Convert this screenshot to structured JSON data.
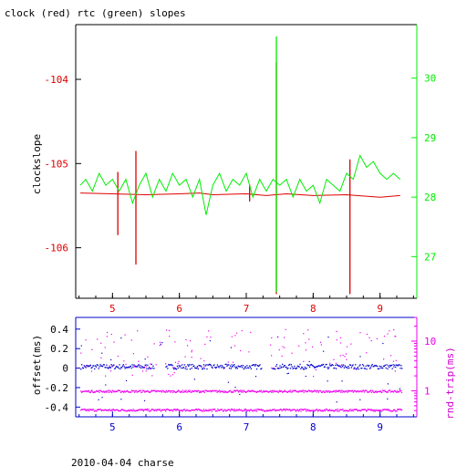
{
  "title": "clock (red) rtc (green) slopes",
  "footer": "2010-04-04 charse",
  "colors": {
    "clock": "#dd0000",
    "rtc": "#00ee00",
    "offset": "#0000cc",
    "rndtrip": "#ee00ee",
    "axis": "#000000"
  },
  "chart_data": [
    {
      "type": "line",
      "title": "clock (red) rtc (green) slopes",
      "ylabel": "clockslope",
      "y2label": "",
      "xlim": [
        4.45,
        9.55
      ],
      "x_ticks": [
        5,
        6,
        7,
        8,
        9
      ],
      "ylim": [
        -106.6,
        -103.35
      ],
      "y_ticks": [
        -106,
        -105,
        -104
      ],
      "y2lim": [
        26.3,
        30.9
      ],
      "y2_ticks": [
        27,
        28,
        29,
        30
      ],
      "series": [
        {
          "axis": "left",
          "color_key": "clock",
          "baseline": [
            [
              4.52,
              -105.35
            ],
            [
              5.0,
              -105.36
            ],
            [
              5.5,
              -105.37
            ],
            [
              6.0,
              -105.36
            ],
            [
              6.3,
              -105.35
            ],
            [
              6.5,
              -105.37
            ],
            [
              7.0,
              -105.36
            ],
            [
              7.3,
              -105.38
            ],
            [
              7.6,
              -105.36
            ],
            [
              8.0,
              -105.38
            ],
            [
              8.5,
              -105.37
            ],
            [
              9.0,
              -105.4
            ],
            [
              9.3,
              -105.38
            ]
          ],
          "spikes": [
            [
              5.08,
              -105.1,
              -105.85
            ],
            [
              5.35,
              -104.85,
              -106.2
            ],
            [
              7.05,
              -105.25,
              -105.45
            ],
            [
              7.45,
              -103.8,
              -106.55
            ],
            [
              8.55,
              -104.95,
              -106.55
            ]
          ]
        },
        {
          "axis": "right",
          "color_key": "rtc",
          "baseline": [
            [
              4.52,
              28.2
            ],
            [
              4.6,
              28.3
            ],
            [
              4.7,
              28.1
            ],
            [
              4.8,
              28.4
            ],
            [
              4.9,
              28.2
            ],
            [
              5.0,
              28.3
            ],
            [
              5.1,
              28.1
            ],
            [
              5.2,
              28.3
            ],
            [
              5.3,
              27.9
            ],
            [
              5.4,
              28.2
            ],
            [
              5.5,
              28.4
            ],
            [
              5.6,
              28.0
            ],
            [
              5.7,
              28.3
            ],
            [
              5.8,
              28.1
            ],
            [
              5.9,
              28.4
            ],
            [
              6.0,
              28.2
            ],
            [
              6.1,
              28.3
            ],
            [
              6.2,
              28.0
            ],
            [
              6.3,
              28.3
            ],
            [
              6.4,
              27.7
            ],
            [
              6.5,
              28.2
            ],
            [
              6.6,
              28.4
            ],
            [
              6.7,
              28.1
            ],
            [
              6.8,
              28.3
            ],
            [
              6.9,
              28.2
            ],
            [
              7.0,
              28.4
            ],
            [
              7.1,
              28.0
            ],
            [
              7.2,
              28.3
            ],
            [
              7.3,
              28.1
            ],
            [
              7.4,
              28.3
            ],
            [
              7.5,
              28.2
            ],
            [
              7.6,
              28.3
            ],
            [
              7.7,
              28.0
            ],
            [
              7.8,
              28.3
            ],
            [
              7.9,
              28.1
            ],
            [
              8.0,
              28.2
            ],
            [
              8.1,
              27.9
            ],
            [
              8.2,
              28.3
            ],
            [
              8.3,
              28.2
            ],
            [
              8.4,
              28.1
            ],
            [
              8.5,
              28.4
            ],
            [
              8.6,
              28.3
            ],
            [
              8.7,
              28.7
            ],
            [
              8.8,
              28.5
            ],
            [
              8.9,
              28.6
            ],
            [
              9.0,
              28.4
            ],
            [
              9.1,
              28.3
            ],
            [
              9.2,
              28.4
            ],
            [
              9.3,
              28.3
            ]
          ],
          "spikes": [
            [
              7.45,
              30.7,
              26.4
            ]
          ]
        }
      ]
    },
    {
      "type": "scatter",
      "xlim": [
        4.45,
        9.55
      ],
      "x_ticks": [
        5,
        6,
        7,
        8,
        9
      ],
      "ylabel": "offset(ms)",
      "ylim": [
        -0.5,
        0.52
      ],
      "y_ticks": [
        -0.4,
        -0.2,
        0,
        0.2,
        0.4
      ],
      "y_tick_labels": [
        "-0.4",
        "-0.2",
        "0",
        "0.2",
        "0.4"
      ],
      "y2label": "rnd-trip(ms)",
      "y2_log": true,
      "y2lim": [
        0.3,
        30
      ],
      "y2_ticks": [
        1,
        10
      ],
      "series": [
        {
          "name": "offset(ms)",
          "color_key": "offset",
          "level": 0.02,
          "x_from": 4.52,
          "x_to": 9.32,
          "gaps": [
            [
              5.62,
              5.78
            ],
            [
              7.22,
              7.38
            ]
          ]
        },
        {
          "name": "rnd-trip(ms)",
          "color_key": "rndtrip",
          "bands": [
            0.42,
            1.0
          ],
          "scatter_range": [
            2.0,
            18.0
          ],
          "x_from": 4.52,
          "x_to": 9.32
        }
      ]
    }
  ]
}
